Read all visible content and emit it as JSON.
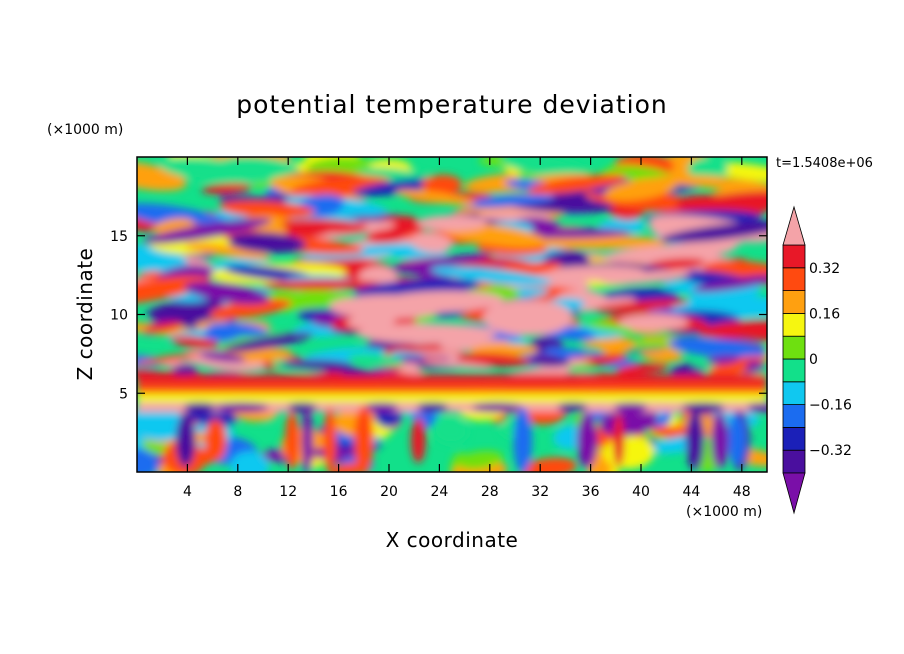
{
  "chart_data": {
    "type": "heatmap",
    "title": "potential temperature deviation",
    "xlabel": "X coordinate",
    "ylabel": "Z coordinate",
    "x_unit": "(×1000 m)",
    "y_unit": "(×1000 m)",
    "time_label": "t=1.5408e+06",
    "xlim": [
      0,
      50
    ],
    "ylim": [
      0,
      20
    ],
    "x_ticks": [
      4,
      8,
      12,
      16,
      20,
      24,
      28,
      32,
      36,
      40,
      44,
      48
    ],
    "x_tick_labels": [
      "4",
      "8",
      "12",
      "16",
      "20",
      "24",
      "28",
      "32",
      "36",
      "40",
      "44",
      "48"
    ],
    "y_ticks": [
      5,
      10,
      15
    ],
    "y_tick_labels": [
      "5",
      "10",
      "15"
    ],
    "colorbar": {
      "levels": [
        -0.4,
        -0.32,
        -0.24,
        -0.16,
        -0.08,
        0,
        0.08,
        0.16,
        0.24,
        0.32,
        0.4
      ],
      "colors": [
        "#7a0fa8",
        "#4a0f9e",
        "#1b20b8",
        "#1b6cf0",
        "#10c8f0",
        "#12e08a",
        "#6ee010",
        "#f6f610",
        "#ffa010",
        "#ff4a10",
        "#e81828",
        "#f4a3a8"
      ],
      "tick_values": [
        0.32,
        0.16,
        0,
        -0.16,
        -0.32
      ],
      "tick_labels": [
        "0.32",
        "0.16",
        "0",
        "−0.16",
        "−0.32"
      ]
    }
  }
}
